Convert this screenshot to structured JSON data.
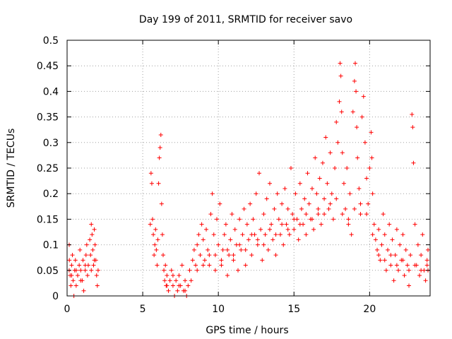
{
  "chart_data": {
    "type": "scatter",
    "title": "Day 199 of 2011, SRMTID for receiver savo",
    "xlabel": "GPS time / hours",
    "ylabel": "SRMTID / TECUs",
    "xlim": [
      0,
      24
    ],
    "ylim": [
      0,
      0.5
    ],
    "xticks": [
      0,
      5,
      10,
      15,
      20
    ],
    "xtick_labels": [
      "0",
      "5",
      "10",
      "15",
      "20"
    ],
    "yticks": [
      0,
      0.05,
      0.1,
      0.15,
      0.2,
      0.25,
      0.3,
      0.35,
      0.4,
      0.45,
      0.5
    ],
    "ytick_labels": [
      "0",
      "0.05",
      "0.1",
      "0.15",
      "0.2",
      "0.25",
      "0.3",
      "0.35",
      "0.4",
      "0.45",
      "0.5"
    ],
    "grid": true,
    "marker": "+",
    "color": "#ff0000",
    "series": [
      {
        "name": "SRMTID",
        "points": [
          [
            0.0,
            0.05
          ],
          [
            0.1,
            0.1
          ],
          [
            0.15,
            0.07
          ],
          [
            0.2,
            0.04
          ],
          [
            0.25,
            0.02
          ],
          [
            0.3,
            0.06
          ],
          [
            0.35,
            0.08
          ],
          [
            0.4,
            0.03
          ],
          [
            0.45,
            0.0
          ],
          [
            0.5,
            0.05
          ],
          [
            0.55,
            0.07
          ],
          [
            0.6,
            0.02
          ],
          [
            0.7,
            0.04
          ],
          [
            0.8,
            0.06
          ],
          [
            0.85,
            0.09
          ],
          [
            0.9,
            0.05
          ],
          [
            1.0,
            0.03
          ],
          [
            1.05,
            0.07
          ],
          [
            1.1,
            0.01
          ],
          [
            1.2,
            0.05
          ],
          [
            1.25,
            0.08
          ],
          [
            1.3,
            0.1
          ],
          [
            1.35,
            0.04
          ],
          [
            1.4,
            0.06
          ],
          [
            1.5,
            0.11
          ],
          [
            1.55,
            0.08
          ],
          [
            1.6,
            0.14
          ],
          [
            1.65,
            0.12
          ],
          [
            1.7,
            0.09
          ],
          [
            1.75,
            0.06
          ],
          [
            1.8,
            0.13
          ],
          [
            1.85,
            0.1
          ],
          [
            1.9,
            0.07
          ],
          [
            1.95,
            0.04
          ],
          [
            2.0,
            0.02
          ],
          [
            2.05,
            0.05
          ],
          [
            5.5,
            0.14
          ],
          [
            5.55,
            0.24
          ],
          [
            5.6,
            0.22
          ],
          [
            5.65,
            0.15
          ],
          [
            5.7,
            0.12
          ],
          [
            5.75,
            0.08
          ],
          [
            5.8,
            0.1
          ],
          [
            5.85,
            0.13
          ],
          [
            5.9,
            0.09
          ],
          [
            5.95,
            0.06
          ],
          [
            6.0,
            0.11
          ],
          [
            6.05,
            0.22
          ],
          [
            6.1,
            0.27
          ],
          [
            6.15,
            0.29
          ],
          [
            6.2,
            0.315
          ],
          [
            6.25,
            0.18
          ],
          [
            6.3,
            0.12
          ],
          [
            6.35,
            0.08
          ],
          [
            6.4,
            0.05
          ],
          [
            6.45,
            0.03
          ],
          [
            6.5,
            0.06
          ],
          [
            6.55,
            0.02
          ],
          [
            6.6,
            0.04
          ],
          [
            6.7,
            0.01
          ],
          [
            6.8,
            0.03
          ],
          [
            6.9,
            0.05
          ],
          [
            7.0,
            0.02
          ],
          [
            7.1,
            0.0
          ],
          [
            7.2,
            0.03
          ],
          [
            7.3,
            0.01
          ],
          [
            7.4,
            0.04
          ],
          [
            7.5,
            0.02
          ],
          [
            7.6,
            0.06
          ],
          [
            7.7,
            0.01
          ],
          [
            7.8,
            0.03
          ],
          [
            7.9,
            0.0
          ],
          [
            8.0,
            0.02
          ],
          [
            8.1,
            0.05
          ],
          [
            8.2,
            0.03
          ],
          [
            8.3,
            0.07
          ],
          [
            8.4,
            0.09
          ],
          [
            8.5,
            0.06
          ],
          [
            8.6,
            0.1
          ],
          [
            8.7,
            0.12
          ],
          [
            8.8,
            0.08
          ],
          [
            8.9,
            0.14
          ],
          [
            9.0,
            0.11
          ],
          [
            9.1,
            0.07
          ],
          [
            9.2,
            0.13
          ],
          [
            9.3,
            0.09
          ],
          [
            9.4,
            0.06
          ],
          [
            9.5,
            0.16
          ],
          [
            9.6,
            0.2
          ],
          [
            9.7,
            0.12
          ],
          [
            9.8,
            0.08
          ],
          [
            9.9,
            0.15
          ],
          [
            10.0,
            0.1
          ],
          [
            10.1,
            0.18
          ],
          [
            10.2,
            0.06
          ],
          [
            10.3,
            0.09
          ],
          [
            10.4,
            0.12
          ],
          [
            10.5,
            0.14
          ],
          [
            10.6,
            0.04
          ],
          [
            10.7,
            0.08
          ],
          [
            10.8,
            0.11
          ],
          [
            10.9,
            0.16
          ],
          [
            11.0,
            0.07
          ],
          [
            11.1,
            0.13
          ],
          [
            11.2,
            0.1
          ],
          [
            11.3,
            0.05
          ],
          [
            11.4,
            0.15
          ],
          [
            11.5,
            0.09
          ],
          [
            11.6,
            0.12
          ],
          [
            11.7,
            0.17
          ],
          [
            11.8,
            0.06
          ],
          [
            11.9,
            0.14
          ],
          [
            12.0,
            0.11
          ],
          [
            12.1,
            0.18
          ],
          [
            12.2,
            0.08
          ],
          [
            12.3,
            0.15
          ],
          [
            12.4,
            0.12
          ],
          [
            12.5,
            0.2
          ],
          [
            12.6,
            0.1
          ],
          [
            12.7,
            0.24
          ],
          [
            12.8,
            0.13
          ],
          [
            12.9,
            0.07
          ],
          [
            13.0,
            0.16
          ],
          [
            13.1,
            0.12
          ],
          [
            13.2,
            0.19
          ],
          [
            13.3,
            0.09
          ],
          [
            13.4,
            0.22
          ],
          [
            13.5,
            0.14
          ],
          [
            13.6,
            0.11
          ],
          [
            13.7,
            0.17
          ],
          [
            13.8,
            0.08
          ],
          [
            13.9,
            0.2
          ],
          [
            14.0,
            0.15
          ],
          [
            14.1,
            0.12
          ],
          [
            14.2,
            0.18
          ],
          [
            14.3,
            0.1
          ],
          [
            14.4,
            0.21
          ],
          [
            14.5,
            0.14
          ],
          [
            14.6,
            0.17
          ],
          [
            14.7,
            0.12
          ],
          [
            14.8,
            0.25
          ],
          [
            14.9,
            0.16
          ],
          [
            15.0,
            0.13
          ],
          [
            15.1,
            0.2
          ],
          [
            15.2,
            0.15
          ],
          [
            15.3,
            0.11
          ],
          [
            15.4,
            0.22
          ],
          [
            15.5,
            0.17
          ],
          [
            15.6,
            0.14
          ],
          [
            15.7,
            0.19
          ],
          [
            15.8,
            0.12
          ],
          [
            15.9,
            0.24
          ],
          [
            16.0,
            0.18
          ],
          [
            16.1,
            0.15
          ],
          [
            16.2,
            0.21
          ],
          [
            16.3,
            0.13
          ],
          [
            16.4,
            0.27
          ],
          [
            16.5,
            0.2
          ],
          [
            16.6,
            0.16
          ],
          [
            16.7,
            0.23
          ],
          [
            16.8,
            0.14
          ],
          [
            16.9,
            0.26
          ],
          [
            17.0,
            0.19
          ],
          [
            17.1,
            0.31
          ],
          [
            17.2,
            0.22
          ],
          [
            17.3,
            0.17
          ],
          [
            17.4,
            0.28
          ],
          [
            17.5,
            0.2
          ],
          [
            17.6,
            0.15
          ],
          [
            17.7,
            0.25
          ],
          [
            17.8,
            0.34
          ],
          [
            17.9,
            0.3
          ],
          [
            18.0,
            0.38
          ],
          [
            18.05,
            0.455
          ],
          [
            18.1,
            0.43
          ],
          [
            18.15,
            0.36
          ],
          [
            18.2,
            0.28
          ],
          [
            18.3,
            0.22
          ],
          [
            18.4,
            0.17
          ],
          [
            18.5,
            0.25
          ],
          [
            18.6,
            0.14
          ],
          [
            18.7,
            0.2
          ],
          [
            18.8,
            0.12
          ],
          [
            18.9,
            0.36
          ],
          [
            19.0,
            0.42
          ],
          [
            19.05,
            0.455
          ],
          [
            19.1,
            0.4
          ],
          [
            19.15,
            0.33
          ],
          [
            19.2,
            0.27
          ],
          [
            19.3,
            0.21
          ],
          [
            19.4,
            0.16
          ],
          [
            19.5,
            0.35
          ],
          [
            19.6,
            0.39
          ],
          [
            19.7,
            0.3
          ],
          [
            19.8,
            0.23
          ],
          [
            19.9,
            0.18
          ],
          [
            20.0,
            0.25
          ],
          [
            20.1,
            0.32
          ],
          [
            20.15,
            0.27
          ],
          [
            20.2,
            0.2
          ],
          [
            20.3,
            0.14
          ],
          [
            20.4,
            0.11
          ],
          [
            20.5,
            0.09
          ],
          [
            20.6,
            0.13
          ],
          [
            20.7,
            0.07
          ],
          [
            20.8,
            0.1
          ],
          [
            20.9,
            0.16
          ],
          [
            21.0,
            0.12
          ],
          [
            21.1,
            0.05
          ],
          [
            21.2,
            0.09
          ],
          [
            21.3,
            0.14
          ],
          [
            21.4,
            0.06
          ],
          [
            21.5,
            0.11
          ],
          [
            21.6,
            0.03
          ],
          [
            21.7,
            0.08
          ],
          [
            21.8,
            0.13
          ],
          [
            21.9,
            0.05
          ],
          [
            22.0,
            0.1
          ],
          [
            22.1,
            0.07
          ],
          [
            22.2,
            0.12
          ],
          [
            22.3,
            0.04
          ],
          [
            22.4,
            0.09
          ],
          [
            22.5,
            0.06
          ],
          [
            22.6,
            0.02
          ],
          [
            22.7,
            0.08
          ],
          [
            22.8,
            0.355
          ],
          [
            22.85,
            0.33
          ],
          [
            22.9,
            0.26
          ],
          [
            23.0,
            0.14
          ],
          [
            23.1,
            0.06
          ],
          [
            23.2,
            0.1
          ],
          [
            23.3,
            0.04
          ],
          [
            23.4,
            0.08
          ],
          [
            23.5,
            0.12
          ],
          [
            23.6,
            0.05
          ],
          [
            23.7,
            0.03
          ],
          [
            23.8,
            0.07
          ],
          [
            23.9,
            0.09
          ],
          [
            24.0,
            0.05
          ],
          [
            0.3,
            0.04
          ],
          [
            0.6,
            0.05
          ],
          [
            0.9,
            0.03
          ],
          [
            1.2,
            0.06
          ],
          [
            1.6,
            0.05
          ],
          [
            1.8,
            0.07
          ],
          [
            6.6,
            0.02
          ],
          [
            7.0,
            0.04
          ],
          [
            7.4,
            0.02
          ],
          [
            7.8,
            0.01
          ],
          [
            8.6,
            0.05
          ],
          [
            9.0,
            0.06
          ],
          [
            9.4,
            0.08
          ],
          [
            9.8,
            0.05
          ],
          [
            10.2,
            0.07
          ],
          [
            10.6,
            0.09
          ],
          [
            11.0,
            0.08
          ],
          [
            11.4,
            0.1
          ],
          [
            11.8,
            0.09
          ],
          [
            12.2,
            0.12
          ],
          [
            12.6,
            0.11
          ],
          [
            13.0,
            0.1
          ],
          [
            13.4,
            0.13
          ],
          [
            13.8,
            0.12
          ],
          [
            14.2,
            0.14
          ],
          [
            14.6,
            0.13
          ],
          [
            15.0,
            0.15
          ],
          [
            15.4,
            0.14
          ],
          [
            15.8,
            0.16
          ],
          [
            16.2,
            0.15
          ],
          [
            16.6,
            0.17
          ],
          [
            17.0,
            0.16
          ],
          [
            17.4,
            0.18
          ],
          [
            17.8,
            0.19
          ],
          [
            18.2,
            0.16
          ],
          [
            18.6,
            0.15
          ],
          [
            19.0,
            0.17
          ],
          [
            19.4,
            0.18
          ],
          [
            19.8,
            0.16
          ],
          [
            20.2,
            0.12
          ],
          [
            20.6,
            0.08
          ],
          [
            21.0,
            0.07
          ],
          [
            21.4,
            0.08
          ],
          [
            21.8,
            0.06
          ],
          [
            22.2,
            0.07
          ],
          [
            22.6,
            0.05
          ],
          [
            23.0,
            0.06
          ],
          [
            23.4,
            0.05
          ],
          [
            23.8,
            0.06
          ]
        ]
      }
    ]
  }
}
